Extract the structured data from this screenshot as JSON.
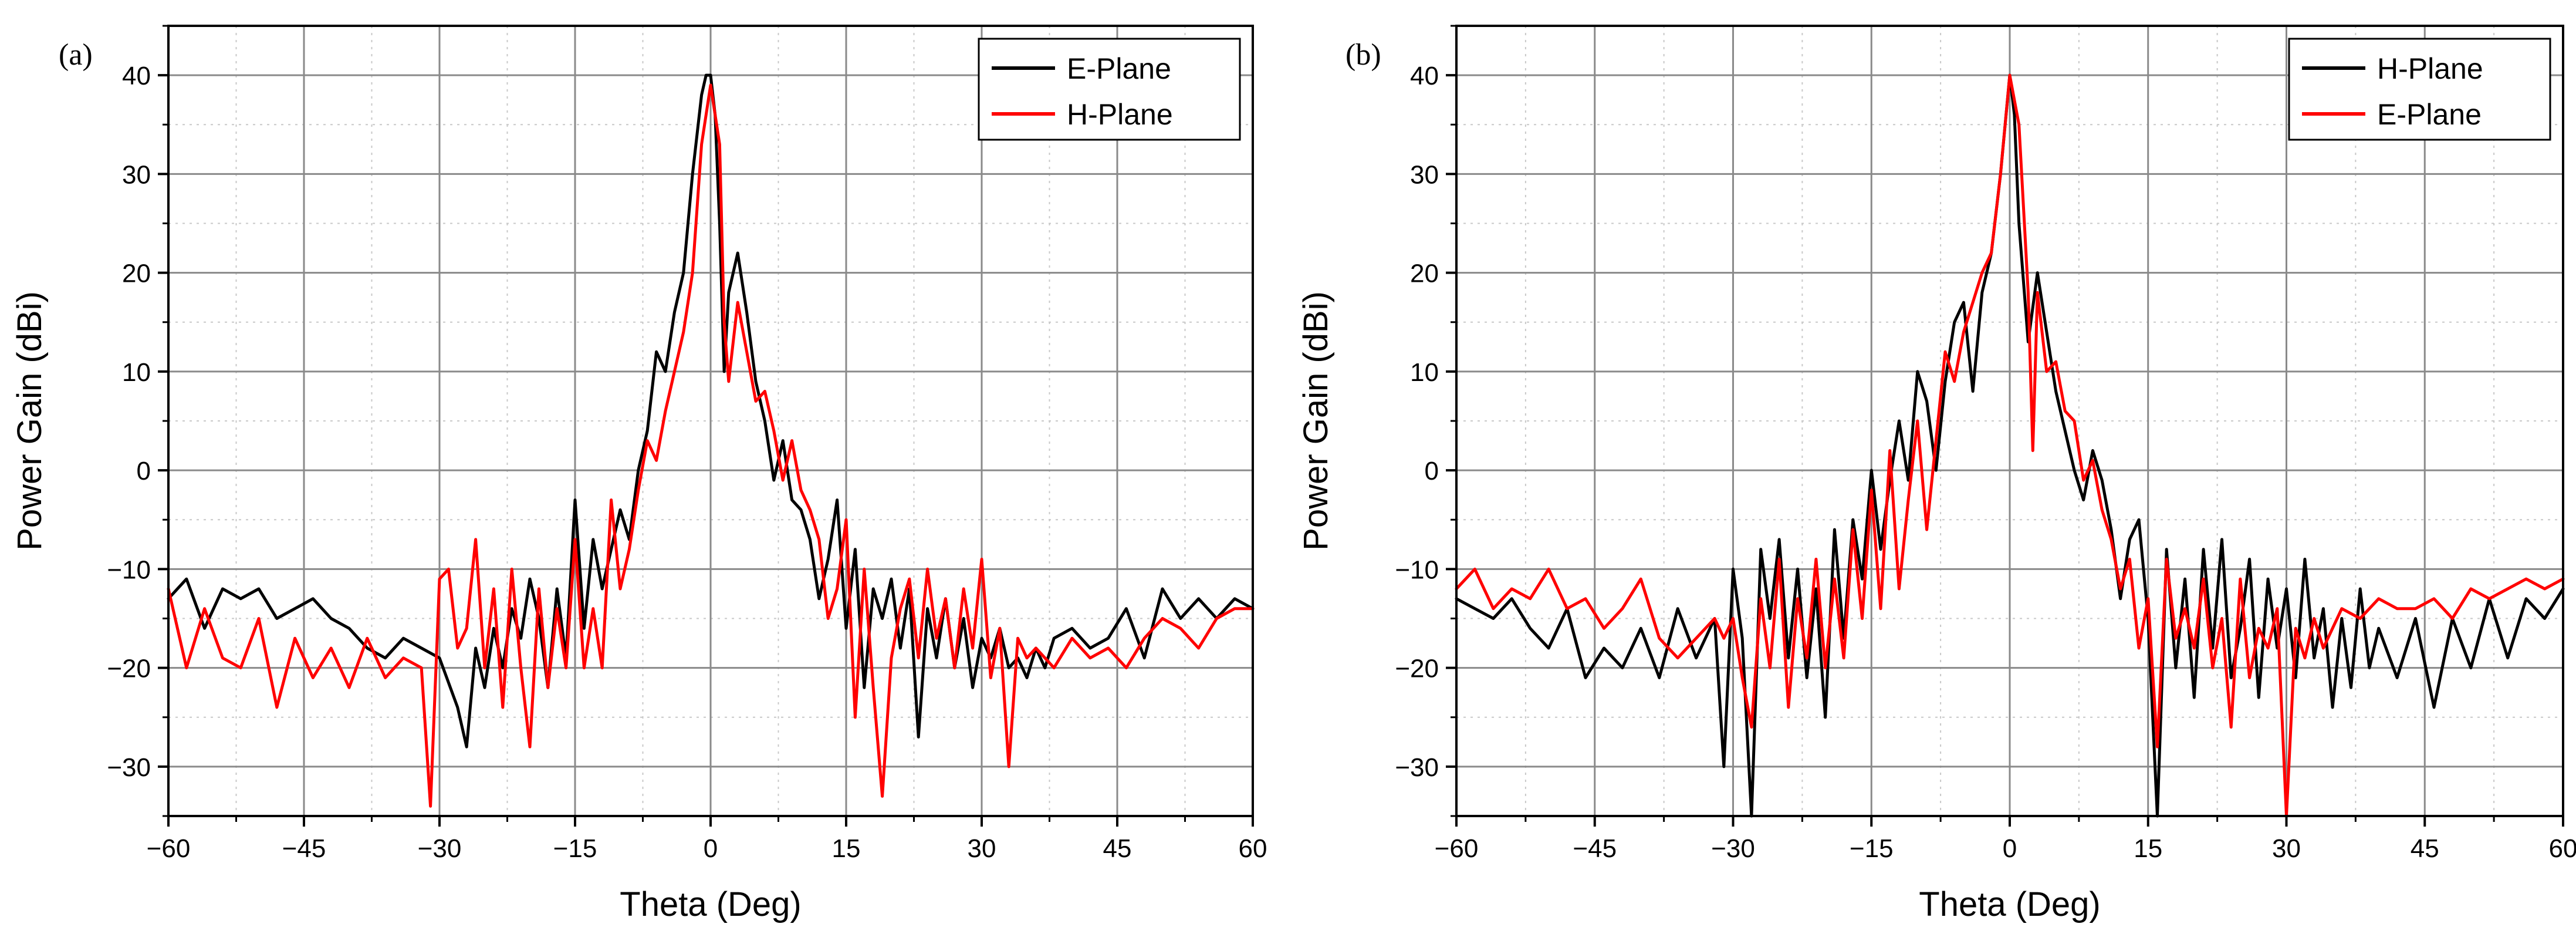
{
  "chart_data": [
    {
      "type": "line",
      "panel_label": "(a)",
      "xlabel": "Theta (Deg)",
      "ylabel": "Power Gain (dBi)",
      "xlim": [
        -60,
        60
      ],
      "ylim": [
        -35,
        45
      ],
      "xticks": [
        -60,
        -45,
        -30,
        -15,
        0,
        15,
        30,
        45,
        60
      ],
      "yticks": [
        -30,
        -20,
        -10,
        0,
        10,
        20,
        30,
        40
      ],
      "xtick_labels": [
        "−60",
        "−45",
        "−30",
        "−15",
        "0",
        "15",
        "30",
        "45",
        "60"
      ],
      "ytick_labels": [
        "−30",
        "−20",
        "−10",
        "0",
        "10",
        "20",
        "30",
        "40"
      ],
      "grid": true,
      "legend_position": "top-right",
      "series": [
        {
          "name": "E-Plane",
          "color": "#000000",
          "x": [
            -60,
            -58,
            -56,
            -54,
            -52,
            -50,
            -48,
            -46,
            -44,
            -42,
            -40,
            -38,
            -36,
            -34,
            -32,
            -30,
            -28,
            -27,
            -26,
            -25,
            -24,
            -23,
            -22,
            -21,
            -20,
            -19,
            -18,
            -17,
            -16,
            -15,
            -14,
            -13,
            -12,
            -11,
            -10,
            -9,
            -8,
            -7,
            -6,
            -5,
            -4,
            -3,
            -2,
            -1,
            -0.5,
            0,
            0.5,
            1,
            1.5,
            2,
            3,
            4,
            5,
            6,
            7,
            8,
            9,
            10,
            11,
            12,
            13,
            14,
            15,
            16,
            17,
            18,
            19,
            20,
            21,
            22,
            23,
            24,
            25,
            26,
            27,
            28,
            29,
            30,
            31,
            32,
            33,
            34,
            35,
            36,
            37,
            38,
            40,
            42,
            44,
            46,
            48,
            50,
            52,
            54,
            56,
            58,
            60
          ],
          "values": [
            -13,
            -11,
            -16,
            -12,
            -13,
            -12,
            -15,
            -14,
            -13,
            -15,
            -16,
            -18,
            -19,
            -17,
            -18,
            -19,
            -24,
            -28,
            -18,
            -22,
            -16,
            -20,
            -14,
            -17,
            -11,
            -15,
            -22,
            -12,
            -19,
            -3,
            -16,
            -7,
            -12,
            -8,
            -4,
            -7,
            0,
            4,
            12,
            10,
            16,
            20,
            30,
            38,
            40,
            40,
            36,
            25,
            10,
            18,
            22,
            16,
            9,
            5,
            -1,
            3,
            -3,
            -4,
            -7,
            -13,
            -9,
            -3,
            -16,
            -8,
            -22,
            -12,
            -15,
            -11,
            -18,
            -12,
            -27,
            -14,
            -19,
            -13,
            -20,
            -15,
            -22,
            -17,
            -19,
            -16,
            -20,
            -19,
            -21,
            -18,
            -20,
            -17,
            -16,
            -18,
            -17,
            -14,
            -19,
            -12,
            -15,
            -13,
            -15,
            -13,
            -14
          ]
        },
        {
          "name": "H-Plane",
          "color": "#ff0000",
          "x": [
            -60,
            -58,
            -56,
            -54,
            -52,
            -50,
            -48,
            -46,
            -44,
            -42,
            -40,
            -38,
            -36,
            -34,
            -32,
            -31,
            -30,
            -29,
            -28,
            -27,
            -26,
            -25,
            -24,
            -23,
            -22,
            -21,
            -20,
            -19,
            -18,
            -17,
            -16,
            -15,
            -14,
            -13,
            -12,
            -11,
            -10,
            -9,
            -8,
            -7,
            -6,
            -5,
            -4,
            -3,
            -2,
            -1,
            0,
            1,
            1.5,
            2,
            3,
            4,
            5,
            6,
            7,
            8,
            9,
            10,
            11,
            12,
            13,
            14,
            15,
            16,
            17,
            18,
            19,
            20,
            21,
            22,
            23,
            24,
            25,
            26,
            27,
            28,
            29,
            30,
            31,
            32,
            33,
            34,
            35,
            36,
            38,
            40,
            42,
            44,
            46,
            48,
            50,
            52,
            54,
            56,
            58,
            60
          ],
          "values": [
            -12,
            -20,
            -14,
            -19,
            -20,
            -15,
            -24,
            -17,
            -21,
            -18,
            -22,
            -17,
            -21,
            -19,
            -20,
            -34,
            -11,
            -10,
            -18,
            -16,
            -7,
            -20,
            -12,
            -24,
            -10,
            -20,
            -28,
            -12,
            -22,
            -14,
            -20,
            -7,
            -20,
            -14,
            -20,
            -3,
            -12,
            -8,
            -2,
            3,
            1,
            6,
            10,
            14,
            20,
            33,
            39,
            33,
            15,
            9,
            17,
            12,
            7,
            8,
            4,
            -1,
            3,
            -2,
            -4,
            -7,
            -15,
            -12,
            -5,
            -25,
            -10,
            -22,
            -33,
            -19,
            -14,
            -11,
            -19,
            -10,
            -17,
            -13,
            -20,
            -12,
            -18,
            -9,
            -21,
            -16,
            -30,
            -17,
            -19,
            -18,
            -20,
            -17,
            -19,
            -18,
            -20,
            -17,
            -15,
            -16,
            -18,
            -15,
            -14,
            -14
          ]
        }
      ]
    },
    {
      "type": "line",
      "panel_label": "(b)",
      "xlabel": "Theta (Deg)",
      "ylabel": "Power Gain (dBi)",
      "xlim": [
        -60,
        60
      ],
      "ylim": [
        -35,
        45
      ],
      "xticks": [
        -60,
        -45,
        -30,
        -15,
        0,
        15,
        30,
        45,
        60
      ],
      "yticks": [
        -30,
        -20,
        -10,
        0,
        10,
        20,
        30,
        40
      ],
      "xtick_labels": [
        "−60",
        "−45",
        "−30",
        "−15",
        "0",
        "15",
        "30",
        "45",
        "60"
      ],
      "ytick_labels": [
        "−30",
        "−20",
        "−10",
        "0",
        "10",
        "20",
        "30",
        "40"
      ],
      "grid": true,
      "legend_position": "top-right",
      "series": [
        {
          "name": "H-Plane",
          "color": "#000000",
          "x": [
            -60,
            -58,
            -56,
            -54,
            -52,
            -50,
            -48,
            -46,
            -44,
            -42,
            -40,
            -38,
            -36,
            -34,
            -32,
            -31,
            -30,
            -29,
            -28,
            -27,
            -26,
            -25,
            -24,
            -23,
            -22,
            -21,
            -20,
            -19,
            -18,
            -17,
            -16,
            -15,
            -14,
            -13,
            -12,
            -11,
            -10,
            -9,
            -8,
            -7,
            -6,
            -5,
            -4,
            -3,
            -2,
            -1,
            0,
            0.5,
            1,
            2,
            3,
            4,
            5,
            6,
            7,
            8,
            9,
            10,
            11,
            12,
            13,
            14,
            15,
            16,
            17,
            18,
            19,
            20,
            21,
            22,
            23,
            24,
            25,
            26,
            27,
            28,
            29,
            30,
            31,
            32,
            33,
            34,
            35,
            36,
            37,
            38,
            39,
            40,
            42,
            44,
            46,
            48,
            50,
            52,
            54,
            56,
            58,
            60
          ],
          "values": [
            -13,
            -14,
            -15,
            -13,
            -16,
            -18,
            -14,
            -21,
            -18,
            -20,
            -16,
            -21,
            -14,
            -19,
            -15,
            -30,
            -10,
            -17,
            -35,
            -8,
            -15,
            -7,
            -19,
            -10,
            -21,
            -12,
            -25,
            -6,
            -17,
            -5,
            -11,
            0,
            -8,
            -1,
            5,
            -1,
            10,
            7,
            0,
            9,
            15,
            17,
            8,
            18,
            22,
            30,
            40,
            36,
            25,
            13,
            20,
            14,
            8,
            4,
            0,
            -3,
            2,
            -1,
            -6,
            -13,
            -7,
            -5,
            -15,
            -35,
            -8,
            -20,
            -11,
            -23,
            -8,
            -18,
            -7,
            -21,
            -16,
            -9,
            -23,
            -11,
            -18,
            -12,
            -21,
            -9,
            -19,
            -14,
            -24,
            -15,
            -22,
            -12,
            -20,
            -16,
            -21,
            -15,
            -24,
            -15,
            -20,
            -13,
            -19,
            -13,
            -15,
            -12
          ]
        },
        {
          "name": "E-Plane",
          "color": "#ff0000",
          "x": [
            -60,
            -58,
            -56,
            -54,
            -52,
            -50,
            -48,
            -46,
            -44,
            -42,
            -40,
            -38,
            -36,
            -34,
            -32,
            -31,
            -30,
            -29,
            -28,
            -27,
            -26,
            -25,
            -24,
            -23,
            -22,
            -21,
            -20,
            -19,
            -18,
            -17,
            -16,
            -15,
            -14,
            -13,
            -12,
            -11,
            -10,
            -9,
            -8,
            -7,
            -6,
            -5,
            -4,
            -3,
            -2,
            -1,
            0,
            1,
            2,
            2.5,
            3,
            4,
            5,
            6,
            7,
            8,
            9,
            10,
            11,
            12,
            13,
            14,
            15,
            16,
            17,
            18,
            19,
            20,
            21,
            22,
            23,
            24,
            25,
            26,
            27,
            28,
            29,
            30,
            31,
            32,
            33,
            34,
            35,
            36,
            38,
            40,
            42,
            44,
            46,
            48,
            50,
            52,
            54,
            56,
            58,
            60
          ],
          "values": [
            -12,
            -10,
            -14,
            -12,
            -13,
            -10,
            -14,
            -13,
            -16,
            -14,
            -11,
            -17,
            -19,
            -17,
            -15,
            -17,
            -15,
            -21,
            -26,
            -13,
            -20,
            -9,
            -24,
            -13,
            -19,
            -9,
            -20,
            -11,
            -19,
            -6,
            -15,
            -2,
            -14,
            2,
            -12,
            -3,
            5,
            -6,
            3,
            12,
            9,
            14,
            17,
            20,
            22,
            30,
            40,
            35,
            18,
            2,
            18,
            10,
            11,
            6,
            5,
            -1,
            1,
            -4,
            -7,
            -12,
            -9,
            -18,
            -13,
            -28,
            -9,
            -17,
            -14,
            -18,
            -11,
            -20,
            -15,
            -26,
            -11,
            -21,
            -16,
            -18,
            -14,
            -35,
            -16,
            -19,
            -15,
            -18,
            -16,
            -14,
            -15,
            -13,
            -14,
            -14,
            -13,
            -15,
            -12,
            -13,
            -12,
            -11,
            -12,
            -11
          ]
        }
      ]
    }
  ]
}
